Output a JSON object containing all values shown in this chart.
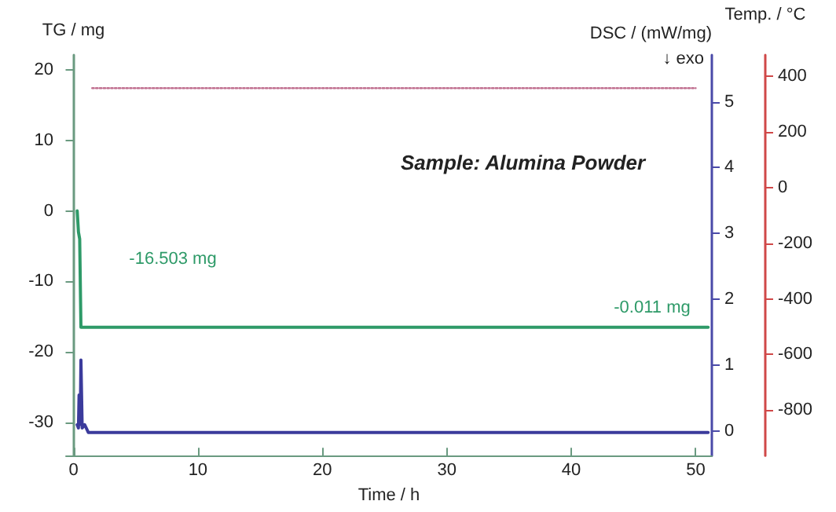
{
  "chart_data": {
    "type": "line",
    "xlabel": "Time / h",
    "ylabel": "TG / mg",
    "y2label": "DSC / (mW/mg)",
    "y3label": "Temp. / °C",
    "xlim": [
      -0.6,
      51.3
    ],
    "xticks": [
      0,
      10,
      20,
      30,
      40,
      50
    ],
    "ylim": [
      -34.7,
      22.1
    ],
    "yticks": [
      -30,
      -20,
      -10,
      0,
      10,
      20
    ],
    "y2lim": [
      -0.37,
      5.71
    ],
    "y2ticks": [
      0,
      1,
      2,
      3,
      4,
      5
    ],
    "y3lim": [
      -963,
      476
    ],
    "y3ticks": [
      -800,
      -600,
      -400,
      -200,
      0,
      200,
      400
    ],
    "grid": false,
    "marker": "none",
    "series": [
      {
        "color": "#2e9a68",
        "line_style": "solid",
        "x": [
          0.3,
          0.4,
          0.5,
          0.6,
          51
        ],
        "values": [
          0,
          -3,
          -4,
          -16.5,
          -16.5
        ]
      },
      {
        "color": "#3b3b9c",
        "axis": "y2",
        "line_style": "solid",
        "x": [
          0.3,
          0.4,
          0.45,
          0.5,
          0.55,
          0.6,
          0.7,
          0.9,
          1.2,
          51
        ],
        "values": [
          0.1,
          0.05,
          0.55,
          0.1,
          0.2,
          1.08,
          0.05,
          0.1,
          -0.02,
          -0.02
        ]
      },
      {
        "color": "#c07090",
        "axis": "y3",
        "line_style": "dotted",
        "x": [
          1.5,
          50
        ],
        "values": [
          357,
          357
        ]
      }
    ],
    "annotations": [
      "Sample: Alumina Powder",
      "↓ exo",
      "-16.503 mg",
      "-0.011 mg"
    ]
  }
}
